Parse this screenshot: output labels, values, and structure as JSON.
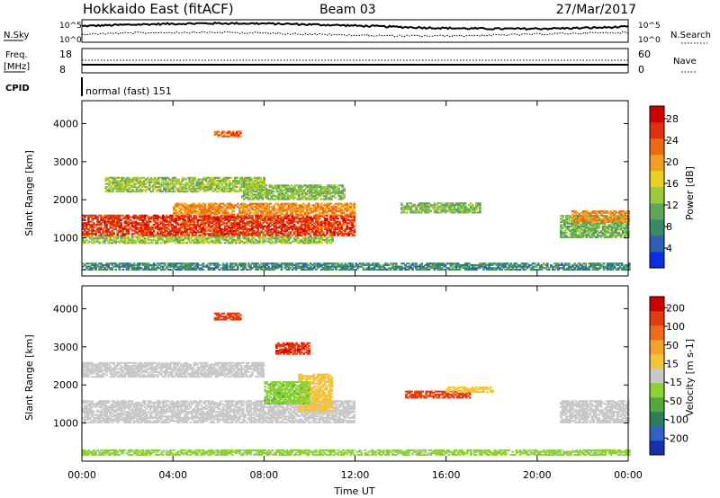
{
  "header": {
    "station": "Hokkaido East (fitACF)",
    "beam": "Beam 03",
    "date": "27/Mar/2017"
  },
  "summary_panels": {
    "nsky_label": "N.Sky",
    "nsky_ticks": [
      "10^5",
      "10^0"
    ],
    "nsearch_label": "N.Search",
    "nsearch_ticks": [
      "10^5",
      "10^0"
    ],
    "freq_label": "Freq.",
    "freq_unit": "[MHz]",
    "freq_ticks": [
      "18",
      "8"
    ],
    "nave_label": "Nave",
    "nave_ticks": [
      "60",
      "0"
    ],
    "cpid_label": "CPID",
    "cpid_text": "normal (fast) 151"
  },
  "colors": {
    "power_scale": [
      "#0a2fe0",
      "#2f5fb0",
      "#3a8a6a",
      "#62a55a",
      "#9cc83c",
      "#e8d020",
      "#f0a020",
      "#ee6a10",
      "#e03010",
      "#d00000"
    ],
    "velocity_scale": [
      "#1a2fb0",
      "#2f62c8",
      "#2d7c5a",
      "#52a83a",
      "#8ad234",
      "#c8c8c8",
      "#f3c33b",
      "#f3a22c",
      "#ee6a1c",
      "#e23c10",
      "#d00000"
    ]
  },
  "chart_data": [
    {
      "type": "heatmap",
      "name": "power",
      "ylabel": "Slant Range [km]",
      "colorbar_label": "Power [dB]",
      "colorbar_ticks": [
        "28",
        "24",
        "20",
        "16",
        "12",
        "8",
        "4"
      ],
      "yticks": [
        "1000",
        "2000",
        "3000",
        "4000"
      ],
      "ylim": [
        0,
        4600
      ],
      "xlim": [
        0,
        24
      ],
      "clim": [
        0,
        32
      ],
      "regions": [
        {
          "t0": 0.0,
          "t1": 12.0,
          "r0": 1050,
          "r1": 1600,
          "v": 27
        },
        {
          "t0": 0.0,
          "t1": 11.0,
          "r0": 850,
          "r1": 1050,
          "v": 14
        },
        {
          "t0": 4.0,
          "t1": 12.0,
          "r0": 1600,
          "r1": 1900,
          "v": 22
        },
        {
          "t0": 7.0,
          "t1": 11.5,
          "r0": 2000,
          "r1": 2400,
          "v": 13
        },
        {
          "t0": 1.0,
          "t1": 8.0,
          "r0": 2200,
          "r1": 2600,
          "v": 14
        },
        {
          "t0": 5.8,
          "t1": 7.0,
          "r0": 3650,
          "r1": 3800,
          "v": 24
        },
        {
          "t0": 14.0,
          "t1": 17.5,
          "r0": 1650,
          "r1": 1900,
          "v": 13
        },
        {
          "t0": 21.0,
          "t1": 24.0,
          "r0": 1000,
          "r1": 1600,
          "v": 12
        },
        {
          "t0": 21.5,
          "t1": 24.0,
          "r0": 1400,
          "r1": 1700,
          "v": 22
        },
        {
          "t0": 0.0,
          "t1": 24.0,
          "r0": 150,
          "r1": 350,
          "v": 8
        }
      ]
    },
    {
      "type": "heatmap",
      "name": "velocity",
      "ylabel": "Slant Range [km]",
      "colorbar_label": "Velocity [m s-1]",
      "colorbar_ticks": [
        "200",
        "100",
        "50",
        "15",
        "-15",
        "-50",
        "-100",
        "-200"
      ],
      "yticks": [
        "1000",
        "2000",
        "3000",
        "4000"
      ],
      "ylim": [
        0,
        4600
      ],
      "xlim": [
        0,
        24
      ],
      "clim": [
        -250,
        250
      ],
      "regions": [
        {
          "t0": 0.0,
          "t1": 12.0,
          "r0": 1000,
          "r1": 1600,
          "v": 0
        },
        {
          "t0": 0.0,
          "t1": 8.0,
          "r0": 2200,
          "r1": 2600,
          "v": 0
        },
        {
          "t0": 9.5,
          "t1": 11.0,
          "r0": 1300,
          "r1": 2300,
          "v": 40
        },
        {
          "t0": 8.0,
          "t1": 10.0,
          "r0": 1500,
          "r1": 2100,
          "v": -60
        },
        {
          "t0": 5.8,
          "t1": 7.0,
          "r0": 3700,
          "r1": 3900,
          "v": 180
        },
        {
          "t0": 8.5,
          "t1": 10.0,
          "r0": 2800,
          "r1": 3100,
          "v": 200
        },
        {
          "t0": 14.2,
          "t1": 17.0,
          "r0": 1650,
          "r1": 1850,
          "v": 180
        },
        {
          "t0": 16.0,
          "t1": 18.0,
          "r0": 1800,
          "r1": 1950,
          "v": 40
        },
        {
          "t0": 21.0,
          "t1": 24.0,
          "r0": 1000,
          "r1": 1600,
          "v": 0
        },
        {
          "t0": 0.0,
          "t1": 24.0,
          "r0": 150,
          "r1": 300,
          "v": -30
        }
      ]
    }
  ],
  "xaxis": {
    "label": "Time UT",
    "ticks": [
      "00:00",
      "04:00",
      "08:00",
      "12:00",
      "16:00",
      "20:00",
      "00:00"
    ]
  }
}
